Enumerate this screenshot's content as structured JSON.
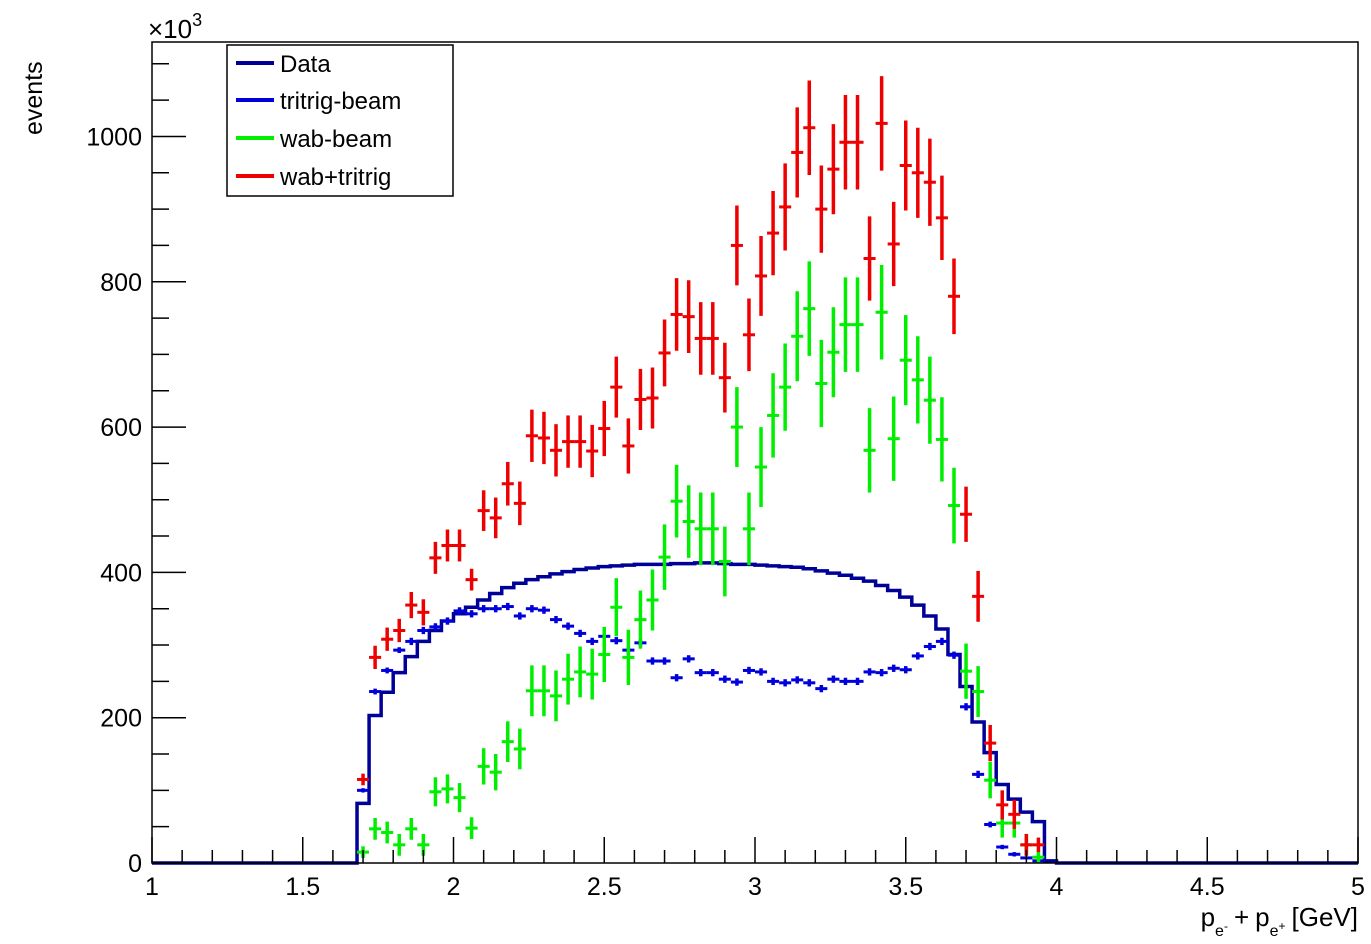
{
  "chart_data": {
    "type": "scatter",
    "xlabel": "",
    "ylabel": "events",
    "y_multiplier_label": "×10",
    "y_multiplier_exp": "3",
    "x_title": {
      "p": "p",
      "e_minus": "e",
      "minus": "-",
      "plus": "+",
      "e_plus": "e",
      "plus_sup": "+",
      "unit": "[GeV]"
    },
    "xlim": [
      1,
      5
    ],
    "ylim": [
      0,
      1130
    ],
    "x_ticks": [
      "1",
      "1.5",
      "2",
      "2.5",
      "3",
      "3.5",
      "4",
      "4.5",
      "5"
    ],
    "y_ticks": [
      "0",
      "200",
      "400",
      "600",
      "800",
      "1000"
    ],
    "legend_position": "top-left",
    "legend": [
      {
        "name": "Data",
        "color": "#000099"
      },
      {
        "name": "tritrig-beam",
        "color": "#0000dd"
      },
      {
        "name": "wab-beam",
        "color": "#00ee00"
      },
      {
        "name": "wab+tritrig",
        "color": "#ee0000"
      }
    ],
    "bin_width": 0.04,
    "data_step": {
      "name": "Data",
      "color": "#000099",
      "bins_start": 1.68,
      "values": [
        82,
        203,
        235,
        262,
        284,
        305,
        320,
        333,
        343,
        352,
        362,
        371,
        379,
        385,
        390,
        394,
        398,
        401,
        404,
        406,
        408,
        409,
        410,
        411,
        411,
        411,
        412,
        412,
        413,
        413,
        412,
        411,
        411,
        410,
        409,
        408,
        407,
        405,
        402,
        399,
        396,
        392,
        388,
        382,
        375,
        366,
        355,
        340,
        322,
        287,
        243,
        194,
        152,
        108,
        88,
        70,
        57,
        3
      ]
    },
    "series": [
      {
        "name": "tritrig-beam",
        "color": "#0000dd",
        "points": [
          [
            1.7,
            100,
            3
          ],
          [
            1.74,
            236,
            4
          ],
          [
            1.78,
            265,
            4
          ],
          [
            1.82,
            293,
            4
          ],
          [
            1.86,
            305,
            5
          ],
          [
            1.9,
            320,
            5
          ],
          [
            1.94,
            325,
            5
          ],
          [
            1.98,
            333,
            5
          ],
          [
            2.02,
            347,
            5
          ],
          [
            2.06,
            343,
            5
          ],
          [
            2.1,
            350,
            5
          ],
          [
            2.14,
            350,
            5
          ],
          [
            2.18,
            353,
            5
          ],
          [
            2.22,
            340,
            5
          ],
          [
            2.26,
            350,
            5
          ],
          [
            2.3,
            348,
            5
          ],
          [
            2.34,
            335,
            5
          ],
          [
            2.38,
            326,
            5
          ],
          [
            2.42,
            316,
            5
          ],
          [
            2.46,
            305,
            5
          ],
          [
            2.5,
            312,
            5
          ],
          [
            2.54,
            306,
            5
          ],
          [
            2.58,
            293,
            5
          ],
          [
            2.62,
            303,
            5
          ],
          [
            2.66,
            278,
            5
          ],
          [
            2.7,
            278,
            5
          ],
          [
            2.74,
            255,
            5
          ],
          [
            2.78,
            281,
            5
          ],
          [
            2.82,
            262,
            5
          ],
          [
            2.86,
            262,
            5
          ],
          [
            2.9,
            253,
            5
          ],
          [
            2.94,
            249,
            5
          ],
          [
            2.98,
            265,
            5
          ],
          [
            3.02,
            263,
            5
          ],
          [
            3.06,
            250,
            5
          ],
          [
            3.1,
            248,
            5
          ],
          [
            3.14,
            252,
            5
          ],
          [
            3.18,
            248,
            5
          ],
          [
            3.22,
            240,
            5
          ],
          [
            3.26,
            253,
            5
          ],
          [
            3.3,
            250,
            5
          ],
          [
            3.34,
            250,
            5
          ],
          [
            3.38,
            263,
            5
          ],
          [
            3.42,
            262,
            5
          ],
          [
            3.46,
            268,
            5
          ],
          [
            3.5,
            266,
            5
          ],
          [
            3.54,
            285,
            5
          ],
          [
            3.58,
            298,
            5
          ],
          [
            3.62,
            305,
            5
          ],
          [
            3.66,
            286,
            5
          ],
          [
            3.7,
            215,
            5
          ],
          [
            3.74,
            122,
            5
          ],
          [
            3.78,
            53,
            4
          ],
          [
            3.82,
            22,
            3
          ],
          [
            3.86,
            12,
            3
          ],
          [
            3.9,
            7,
            2
          ],
          [
            3.94,
            3,
            2
          ]
        ]
      },
      {
        "name": "wab-beam",
        "color": "#00ee00",
        "points": [
          [
            1.7,
            15,
            8
          ],
          [
            1.74,
            47,
            15
          ],
          [
            1.78,
            42,
            15
          ],
          [
            1.82,
            25,
            15
          ],
          [
            1.86,
            47,
            15
          ],
          [
            1.9,
            25,
            15
          ],
          [
            1.94,
            98,
            20
          ],
          [
            1.98,
            102,
            20
          ],
          [
            2.02,
            90,
            20
          ],
          [
            2.06,
            48,
            15
          ],
          [
            2.1,
            133,
            25
          ],
          [
            2.14,
            125,
            25
          ],
          [
            2.18,
            167,
            28
          ],
          [
            2.22,
            157,
            28
          ],
          [
            2.26,
            237,
            35
          ],
          [
            2.3,
            237,
            35
          ],
          [
            2.34,
            230,
            35
          ],
          [
            2.38,
            253,
            35
          ],
          [
            2.42,
            263,
            35
          ],
          [
            2.46,
            260,
            35
          ],
          [
            2.5,
            287,
            38
          ],
          [
            2.54,
            352,
            40
          ],
          [
            2.58,
            283,
            38
          ],
          [
            2.62,
            335,
            40
          ],
          [
            2.66,
            362,
            42
          ],
          [
            2.7,
            421,
            45
          ],
          [
            2.74,
            498,
            50
          ],
          [
            2.78,
            470,
            50
          ],
          [
            2.82,
            460,
            50
          ],
          [
            2.86,
            460,
            50
          ],
          [
            2.9,
            415,
            48
          ],
          [
            2.94,
            600,
            55
          ],
          [
            2.98,
            460,
            50
          ],
          [
            3.02,
            545,
            55
          ],
          [
            3.06,
            616,
            58
          ],
          [
            3.1,
            655,
            60
          ],
          [
            3.14,
            725,
            62
          ],
          [
            3.18,
            763,
            65
          ],
          [
            3.22,
            660,
            60
          ],
          [
            3.26,
            703,
            62
          ],
          [
            3.3,
            741,
            65
          ],
          [
            3.34,
            741,
            65
          ],
          [
            3.38,
            568,
            58
          ],
          [
            3.42,
            758,
            65
          ],
          [
            3.46,
            584,
            58
          ],
          [
            3.5,
            692,
            62
          ],
          [
            3.54,
            665,
            60
          ],
          [
            3.58,
            637,
            60
          ],
          [
            3.62,
            583,
            58
          ],
          [
            3.66,
            492,
            52
          ],
          [
            3.7,
            264,
            38
          ],
          [
            3.74,
            236,
            35
          ],
          [
            3.78,
            114,
            25
          ],
          [
            3.82,
            55,
            20
          ],
          [
            3.86,
            55,
            20
          ],
          [
            3.9,
            25,
            15
          ],
          [
            3.94,
            8,
            8
          ]
        ]
      },
      {
        "name": "wab+tritrig",
        "color": "#ee0000",
        "points": [
          [
            1.7,
            115,
            8
          ],
          [
            1.74,
            283,
            16
          ],
          [
            1.78,
            308,
            16
          ],
          [
            1.82,
            320,
            16
          ],
          [
            1.86,
            355,
            18
          ],
          [
            1.9,
            345,
            18
          ],
          [
            1.94,
            420,
            22
          ],
          [
            1.98,
            437,
            22
          ],
          [
            2.02,
            437,
            22
          ],
          [
            2.06,
            390,
            15
          ],
          [
            2.1,
            485,
            28
          ],
          [
            2.14,
            475,
            28
          ],
          [
            2.18,
            522,
            30
          ],
          [
            2.22,
            495,
            30
          ],
          [
            2.26,
            588,
            36
          ],
          [
            2.3,
            585,
            36
          ],
          [
            2.34,
            568,
            36
          ],
          [
            2.38,
            580,
            36
          ],
          [
            2.42,
            580,
            36
          ],
          [
            2.46,
            567,
            36
          ],
          [
            2.5,
            598,
            38
          ],
          [
            2.54,
            655,
            42
          ],
          [
            2.58,
            574,
            38
          ],
          [
            2.62,
            638,
            42
          ],
          [
            2.66,
            640,
            42
          ],
          [
            2.7,
            702,
            46
          ],
          [
            2.74,
            755,
            50
          ],
          [
            2.78,
            752,
            50
          ],
          [
            2.82,
            722,
            50
          ],
          [
            2.86,
            722,
            50
          ],
          [
            2.9,
            668,
            48
          ],
          [
            2.94,
            850,
            55
          ],
          [
            2.98,
            727,
            50
          ],
          [
            3.02,
            808,
            55
          ],
          [
            3.06,
            867,
            58
          ],
          [
            3.1,
            903,
            60
          ],
          [
            3.14,
            978,
            62
          ],
          [
            3.18,
            1012,
            65
          ],
          [
            3.22,
            900,
            60
          ],
          [
            3.26,
            955,
            62
          ],
          [
            3.3,
            992,
            65
          ],
          [
            3.34,
            992,
            65
          ],
          [
            3.38,
            832,
            58
          ],
          [
            3.42,
            1018,
            65
          ],
          [
            3.46,
            852,
            58
          ],
          [
            3.5,
            960,
            62
          ],
          [
            3.54,
            950,
            62
          ],
          [
            3.58,
            937,
            60
          ],
          [
            3.62,
            888,
            58
          ],
          [
            3.66,
            780,
            52
          ],
          [
            3.7,
            480,
            38
          ],
          [
            3.74,
            367,
            35
          ],
          [
            3.78,
            165,
            25
          ],
          [
            3.82,
            80,
            20
          ],
          [
            3.86,
            67,
            20
          ],
          [
            3.9,
            25,
            15
          ],
          [
            3.94,
            25,
            10
          ]
        ]
      }
    ]
  }
}
